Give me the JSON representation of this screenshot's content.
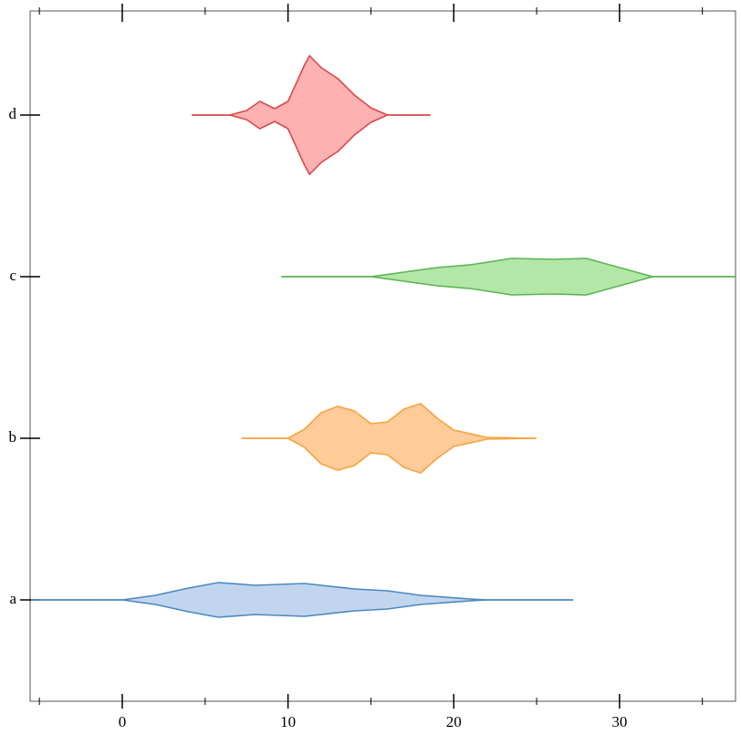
{
  "chart_data": {
    "type": "violin",
    "categories": [
      "a",
      "b",
      "c",
      "d"
    ],
    "xlim": [
      -5.56,
      37
    ],
    "xticks": [
      0,
      10,
      20,
      30
    ],
    "xminorticks": [
      -5,
      5,
      15,
      25,
      35
    ],
    "series": [
      {
        "color": "#4a88c0",
        "fill": "#c2d5ef",
        "x": [
          -5.5,
          0,
          2,
          4,
          5.8,
          8,
          11,
          14,
          16,
          18,
          21,
          22,
          27.2
        ],
        "values": [
          0,
          0,
          0.05,
          0.13,
          0.19,
          0.16,
          0.18,
          0.12,
          0.1,
          0.05,
          0.01,
          0,
          0
        ]
      },
      {
        "color": "#f7a340",
        "fill": "#fecb99",
        "x": [
          7.2,
          10,
          11,
          12,
          13,
          14,
          15,
          16,
          17,
          18,
          19,
          20,
          22,
          25
        ],
        "values": [
          0,
          0,
          0.1,
          0.28,
          0.35,
          0.3,
          0.16,
          0.18,
          0.32,
          0.38,
          0.22,
          0.09,
          0.01,
          0
        ]
      },
      {
        "color": "#5ab552",
        "fill": "#b3e6a7",
        "x": [
          9.6,
          15,
          17,
          19,
          21,
          23.5,
          26,
          28,
          30,
          32,
          37
        ],
        "values": [
          0,
          0,
          0.05,
          0.1,
          0.13,
          0.2,
          0.19,
          0.2,
          0.1,
          0,
          0
        ]
      },
      {
        "color": "#d9494a",
        "fill": "#feb1b1",
        "x": [
          4.2,
          6.5,
          7.5,
          8.3,
          9.2,
          10,
          11,
          11.3,
          12,
          13,
          14,
          15,
          16,
          18.6
        ],
        "values": [
          0,
          0,
          0.05,
          0.15,
          0.07,
          0.15,
          0.55,
          0.65,
          0.52,
          0.4,
          0.22,
          0.08,
          0,
          0
        ]
      }
    ]
  }
}
